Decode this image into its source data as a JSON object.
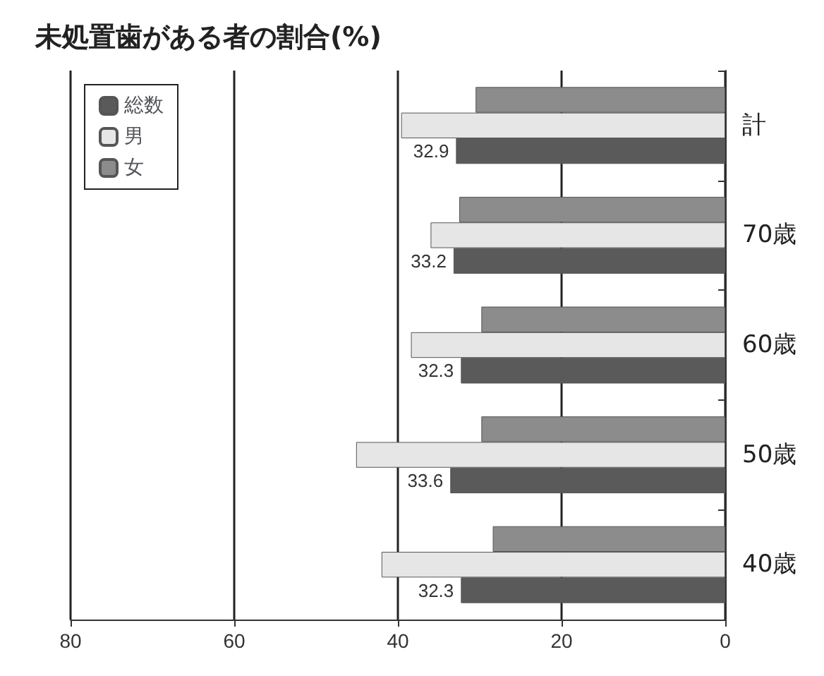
{
  "chart_data": {
    "type": "bar",
    "orientation": "horizontal",
    "title": "未処置歯がある者の割合(%)",
    "categories": [
      "計",
      "70歳",
      "60歳",
      "50歳",
      "40歳"
    ],
    "series": [
      {
        "name": "総数",
        "color": "#5a5a5a",
        "values": [
          32.9,
          33.2,
          32.3,
          33.6,
          32.3
        ],
        "value_labels": [
          "32.9",
          "33.2",
          "32.3",
          "33.6",
          "32.3"
        ]
      },
      {
        "name": "男",
        "color": "#e6e6e6",
        "values": [
          39.6,
          36.0,
          38.4,
          45.1,
          42.0
        ]
      },
      {
        "name": "女",
        "color": "#8c8c8c",
        "values": [
          30.5,
          32.5,
          29.8,
          29.8,
          28.4
        ]
      }
    ],
    "xlim": [
      80,
      0
    ],
    "xticks": [
      80,
      60,
      40,
      20,
      0
    ],
    "grid": "x",
    "legend": "top left"
  }
}
